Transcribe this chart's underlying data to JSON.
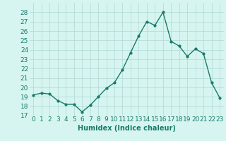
{
  "x": [
    0,
    1,
    2,
    3,
    4,
    5,
    6,
    7,
    8,
    9,
    10,
    11,
    12,
    13,
    14,
    15,
    16,
    17,
    18,
    19,
    20,
    21,
    22,
    23
  ],
  "y": [
    19.2,
    19.4,
    19.3,
    18.6,
    18.2,
    18.2,
    17.4,
    18.1,
    19.0,
    19.9,
    20.5,
    21.9,
    23.7,
    25.5,
    27.0,
    26.6,
    28.0,
    24.9,
    24.4,
    23.3,
    24.1,
    23.6,
    20.5,
    18.9
  ],
  "line_color": "#1a7a6a",
  "marker": "o",
  "markersize": 2,
  "linewidth": 1.0,
  "xlabel": "Humidex (Indice chaleur)",
  "bg_color": "#d6f5f0",
  "grid_color": "#b0d8d4",
  "xlim": [
    -0.5,
    23.5
  ],
  "ylim": [
    17,
    29
  ],
  "yticks": [
    17,
    18,
    19,
    20,
    21,
    22,
    23,
    24,
    25,
    26,
    27,
    28
  ],
  "xticks": [
    0,
    1,
    2,
    3,
    4,
    5,
    6,
    7,
    8,
    9,
    10,
    11,
    12,
    13,
    14,
    15,
    16,
    17,
    18,
    19,
    20,
    21,
    22,
    23
  ],
  "xlabel_fontsize": 7,
  "tick_fontsize": 6.5
}
